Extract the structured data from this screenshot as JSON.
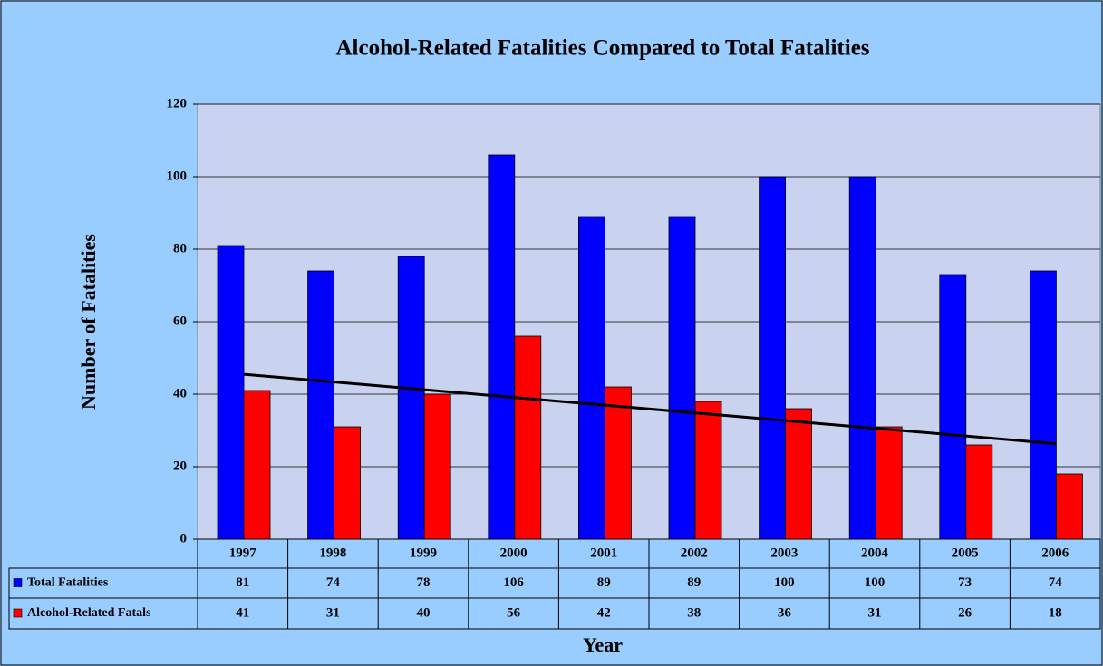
{
  "chart_data": {
    "type": "bar",
    "title": "Alcohol-Related Fatalities Compared to Total Fatalities",
    "y_label": "Number of Fatalities",
    "x_label": "Year",
    "categories": [
      "1997",
      "1998",
      "1999",
      "2000",
      "2001",
      "2002",
      "2003",
      "2004",
      "2005",
      "2006"
    ],
    "series": [
      {
        "name": "Total Fatalities",
        "color": "#0000ff",
        "values": [
          81,
          74,
          78,
          106,
          89,
          89,
          100,
          100,
          73,
          74
        ]
      },
      {
        "name": "Alcohol-Related Fatals",
        "color": "#ff0000",
        "values": [
          41,
          31,
          40,
          56,
          42,
          38,
          36,
          31,
          26,
          18
        ],
        "trendline": true
      }
    ],
    "ylim": [
      0,
      120
    ],
    "yticks": [
      0,
      20,
      40,
      60,
      80,
      100,
      120
    ],
    "grid": true
  }
}
